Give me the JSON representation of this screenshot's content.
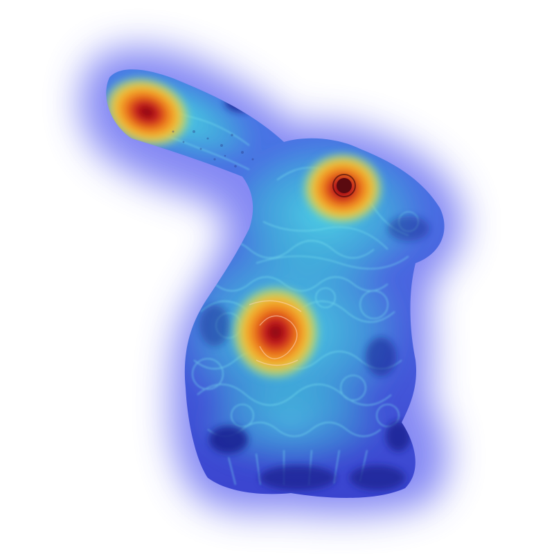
{
  "image": {
    "subject": "bunny-figurine",
    "overlay": "attention-heatmap",
    "colors": {
      "background": "#ffffff",
      "halo": "#6f74f2",
      "body_low": "#4a5fe0",
      "body_mid": "#3fc8d8",
      "hot_warm": "#f3c236",
      "hot_orange": "#ee7a1c",
      "hot_red": "#b3121a",
      "pattern_dark": "#1a1f8f",
      "pattern_line": "#7fe6f0"
    },
    "hotspots": [
      "ear-tip",
      "eye",
      "chest"
    ]
  }
}
